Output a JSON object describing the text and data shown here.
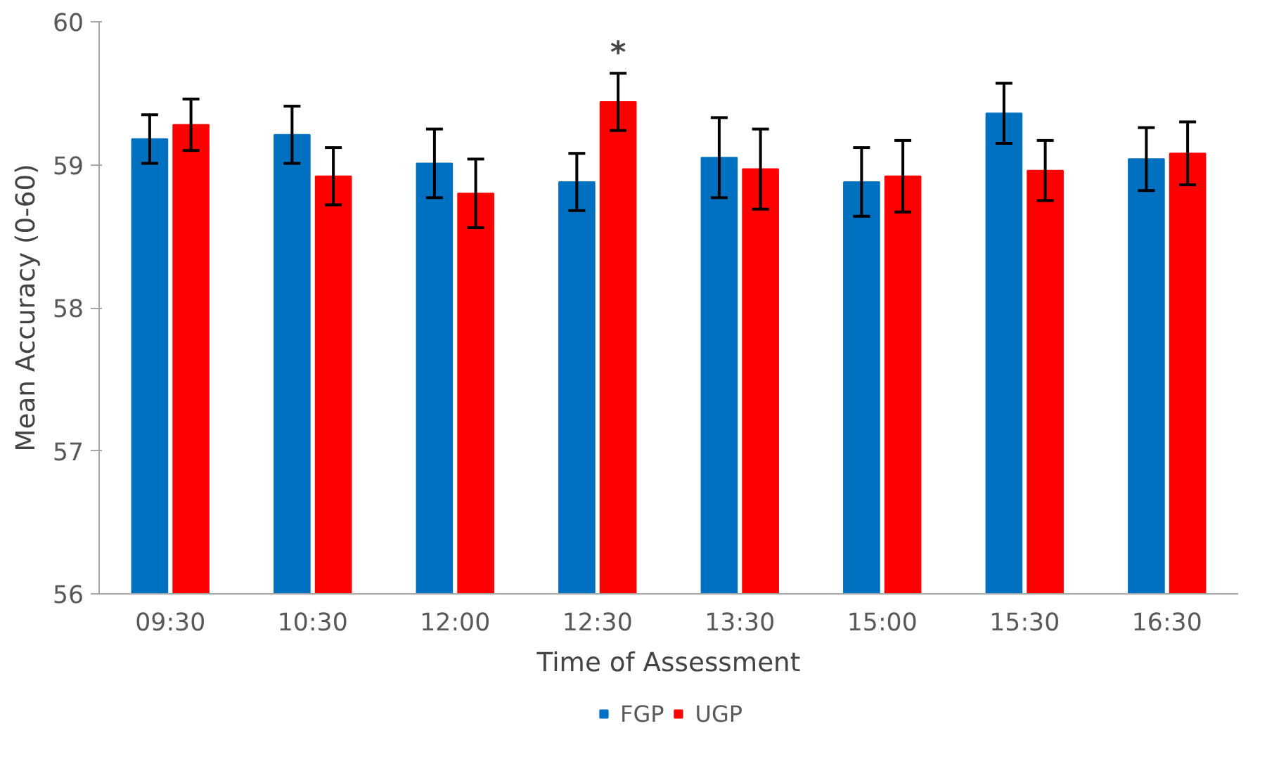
{
  "chart_data": {
    "type": "bar",
    "xlabel": "Time of Assessment",
    "ylabel": "Mean Accuracy (0-60)",
    "categories": [
      "09:30",
      "10:30",
      "12:00",
      "12:30",
      "13:30",
      "15:00",
      "15:30",
      "16:30"
    ],
    "series": [
      {
        "name": "FGP",
        "color": "#0070c0",
        "values": [
          59.18,
          59.21,
          59.01,
          58.88,
          59.05,
          58.88,
          59.36,
          59.04
        ],
        "errors": [
          0.17,
          0.2,
          0.24,
          0.2,
          0.28,
          0.24,
          0.21,
          0.22
        ]
      },
      {
        "name": "UGP",
        "color": "#ff0000",
        "values": [
          59.28,
          58.92,
          58.8,
          59.44,
          58.97,
          58.92,
          58.96,
          59.08
        ],
        "errors": [
          0.18,
          0.2,
          0.24,
          0.2,
          0.28,
          0.25,
          0.21,
          0.22
        ]
      }
    ],
    "ylim": [
      56,
      60
    ],
    "yticks": [
      56,
      57,
      58,
      59,
      60
    ],
    "grid": false,
    "legend": "bottom",
    "annotations": [
      "*"
    ]
  }
}
